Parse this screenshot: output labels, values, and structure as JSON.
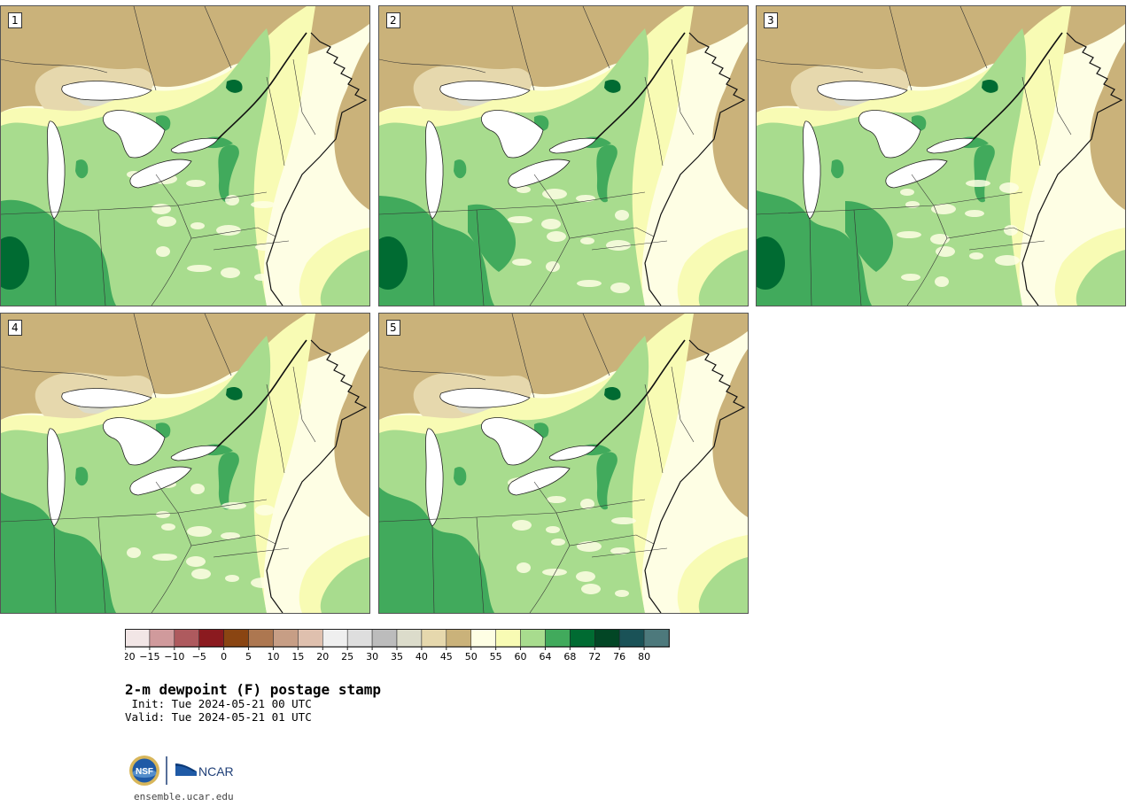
{
  "panels": [
    {
      "label": "1"
    },
    {
      "label": "2"
    },
    {
      "label": "3"
    },
    {
      "label": "4"
    },
    {
      "label": "5"
    }
  ],
  "colorbar": {
    "ticks": [
      "-20",
      "-15",
      "-10",
      "-5",
      "0",
      "5",
      "10",
      "15",
      "20",
      "25",
      "30",
      "35",
      "40",
      "45",
      "50",
      "55",
      "60",
      "64",
      "68",
      "72",
      "76",
      "80"
    ],
    "colors": [
      "#f2e6e6",
      "#d09a9c",
      "#ae5a5e",
      "#8b1a1f",
      "#8a4512",
      "#ad7750",
      "#c79e85",
      "#dfc0ae",
      "#efefef",
      "#dedede",
      "#bcbcbc",
      "#dcdccb",
      "#e6d8ad",
      "#cab27a",
      "#fefee4",
      "#f8fbb4",
      "#a8dc8e",
      "#41aa5c",
      "#006b32",
      "#024625",
      "#1a5257",
      "#4d797c"
    ]
  },
  "map_colors": {
    "brown": "#cab27a",
    "tan": "#e6d8ad",
    "gray": "#dcdccb",
    "cream": "#fefee4",
    "lightyellow": "#f8fbb4",
    "lightgreen": "#a8dc8e",
    "green": "#41aa5c",
    "darkgreen": "#006b32"
  },
  "title": "2-m dewpoint (F) postage stamp",
  "init": " Init: Tue 2024-05-21 00 UTC",
  "valid": "Valid: Tue 2024-05-21 01 UTC",
  "footer_url": "ensemble.ucar.edu",
  "logo": {
    "nsf": "NSF",
    "ncar": "NCAR"
  }
}
